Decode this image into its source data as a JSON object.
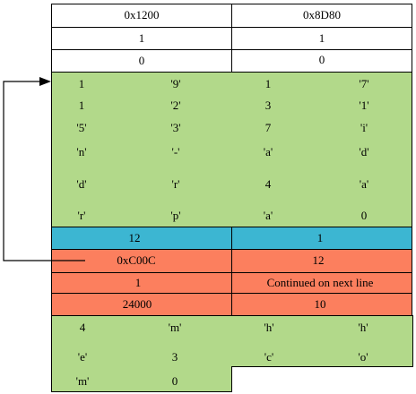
{
  "colors": {
    "white": "#ffffff",
    "green": "#b2d98a",
    "blue": "#3cb6d2",
    "orange": "#fc7f5e",
    "border": "#000000"
  },
  "rows": {
    "header_address": {
      "left": "0x1200",
      "right": "0x8D80"
    },
    "row_one": {
      "left": "1",
      "right": "1"
    },
    "row_zero": {
      "left": "0",
      "right": "0"
    },
    "blue_row": {
      "left": "12",
      "right": "1"
    },
    "orange_address": {
      "left": "0xC00C",
      "right": "12"
    },
    "orange_continued": {
      "left": "1",
      "right": "Continued on next line"
    },
    "orange_size": {
      "left": "24000",
      "right": "10"
    }
  },
  "green_block_1": [
    [
      "1",
      "'9'",
      "1",
      "'7'"
    ],
    [
      "1",
      "'2'",
      "3",
      "'1'"
    ],
    [
      "'5'",
      "'3'",
      "7",
      "'i'"
    ],
    [
      "'n'",
      "'-'",
      "'a'",
      "'d'"
    ],
    [
      "'d'",
      "'r'",
      "4",
      "'a'"
    ],
    [
      "'r'",
      "'p'",
      "'a'",
      "0"
    ]
  ],
  "green_block_2": [
    [
      "4",
      "'m'",
      "'h'",
      "'h'"
    ],
    [
      "'e'",
      "3",
      "'c'",
      "'o'"
    ],
    [
      "'m'",
      "0"
    ]
  ]
}
